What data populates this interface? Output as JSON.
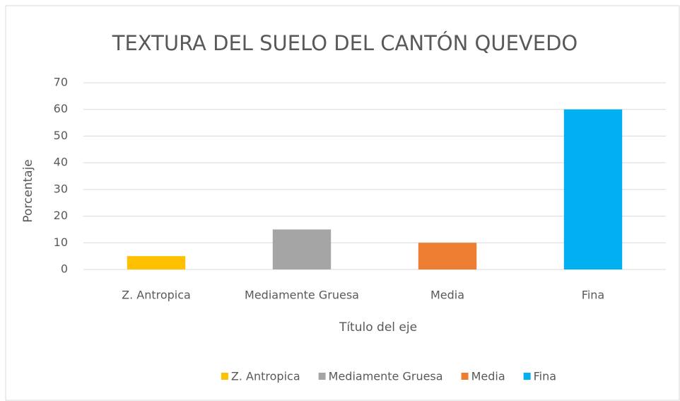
{
  "chart_data": {
    "type": "bar",
    "title": "TEXTURA DEL SUELO DEL CANTÓN QUEVEDO",
    "categories": [
      "Z. Antropica",
      "Mediamente Gruesa",
      "Media",
      "Fina"
    ],
    "values": [
      5,
      15,
      10,
      60
    ],
    "colors": [
      "#ffc000",
      "#a5a5a5",
      "#ed7d31",
      "#00b0f0"
    ],
    "y_label": "Porcentaje",
    "x_label": "Título del eje",
    "ylim": [
      0,
      70
    ],
    "yticks": [
      0,
      10,
      20,
      30,
      40,
      50,
      60,
      70
    ],
    "grid": true,
    "legend": "bottom"
  }
}
